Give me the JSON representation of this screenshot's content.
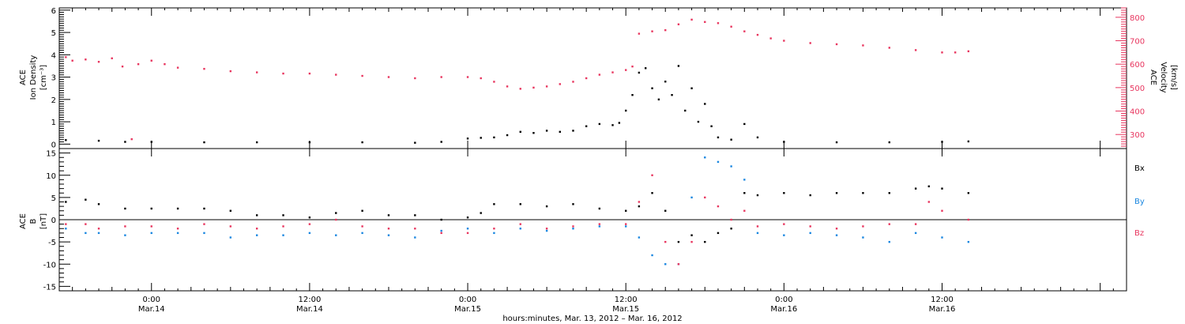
{
  "colors": {
    "black": "#000000",
    "red": "#e8365f",
    "blue": "#1b87e0"
  },
  "x_axis": {
    "label": "hours:minutes, Mar. 13, 2012 – Mar. 16, 2012",
    "ticks": [
      {
        "hour": 24,
        "time": "0:00",
        "date": "Mar.14"
      },
      {
        "hour": 36,
        "time": "12:00",
        "date": "Mar.14"
      },
      {
        "hour": 48,
        "time": "0:00",
        "date": "Mar.15"
      },
      {
        "hour": 60,
        "time": "12:00",
        "date": "Mar.15"
      },
      {
        "hour": 72,
        "time": "0:00",
        "date": "Mar.16"
      },
      {
        "hour": 84,
        "time": "12:00",
        "date": "Mar.16"
      }
    ]
  },
  "chart_data": [
    {
      "type": "scatter",
      "panel": "top",
      "x_range_hours": [
        17,
        98
      ],
      "ylabel_left": [
        "ACE",
        "Ion Density",
        "[cm⁻³]"
      ],
      "ylim_left": [
        -0.2,
        6.1
      ],
      "yticks_left": [
        0,
        1,
        2,
        3,
        4,
        5,
        6
      ],
      "ylabel_right": [
        "ACE",
        "Velocity",
        "[km/s]"
      ],
      "ylim_right": [
        240,
        840
      ],
      "yticks_right": [
        300,
        400,
        500,
        600,
        700,
        800
      ],
      "series": [
        {
          "color": "black",
          "axis": "left",
          "description": "Ion density",
          "points": [
            [
              17.5,
              0.18
            ],
            [
              20,
              0.15
            ],
            [
              22,
              0.1
            ],
            [
              24,
              0.1
            ],
            [
              28,
              0.08
            ],
            [
              32,
              0.08
            ],
            [
              36,
              0.08
            ],
            [
              40,
              0.08
            ],
            [
              44,
              0.06
            ],
            [
              46,
              0.1
            ],
            [
              48,
              0.25
            ],
            [
              49,
              0.28
            ],
            [
              50,
              0.3
            ],
            [
              51,
              0.4
            ],
            [
              52,
              0.55
            ],
            [
              53,
              0.5
            ],
            [
              54,
              0.6
            ],
            [
              55,
              0.55
            ],
            [
              56,
              0.6
            ],
            [
              57,
              0.8
            ],
            [
              58,
              0.9
            ],
            [
              59,
              0.85
            ],
            [
              59.5,
              0.95
            ],
            [
              60,
              1.5
            ],
            [
              60.5,
              2.2
            ],
            [
              61,
              3.2
            ],
            [
              61.5,
              3.4
            ],
            [
              62,
              2.5
            ],
            [
              62.5,
              2.0
            ],
            [
              63,
              2.8
            ],
            [
              63.5,
              2.2
            ],
            [
              64,
              3.5
            ],
            [
              64.5,
              1.5
            ],
            [
              65,
              2.5
            ],
            [
              65.5,
              1.0
            ],
            [
              66,
              1.8
            ],
            [
              66.5,
              0.8
            ],
            [
              67,
              0.3
            ],
            [
              68,
              0.2
            ],
            [
              69,
              0.9
            ],
            [
              70,
              0.3
            ],
            [
              72,
              0.1
            ],
            [
              76,
              0.08
            ],
            [
              80,
              0.08
            ],
            [
              84,
              0.1
            ],
            [
              86,
              0.12
            ]
          ]
        },
        {
          "color": "red",
          "axis": "right",
          "description": "Solar wind velocity",
          "points": [
            [
              17.5,
              630
            ],
            [
              18,
              615
            ],
            [
              19,
              620
            ],
            [
              20,
              610
            ],
            [
              21,
              625
            ],
            [
              21.8,
              590
            ],
            [
              22.5,
              280
            ],
            [
              23,
              600
            ],
            [
              24,
              615
            ],
            [
              25,
              600
            ],
            [
              26,
              585
            ],
            [
              28,
              580
            ],
            [
              30,
              570
            ],
            [
              32,
              565
            ],
            [
              34,
              560
            ],
            [
              36,
              560
            ],
            [
              38,
              555
            ],
            [
              40,
              550
            ],
            [
              42,
              545
            ],
            [
              44,
              540
            ],
            [
              46,
              545
            ],
            [
              48,
              545
            ],
            [
              49,
              540
            ],
            [
              50,
              525
            ],
            [
              51,
              505
            ],
            [
              52,
              495
            ],
            [
              53,
              500
            ],
            [
              54,
              505
            ],
            [
              55,
              515
            ],
            [
              56,
              525
            ],
            [
              57,
              540
            ],
            [
              58,
              555
            ],
            [
              59,
              565
            ],
            [
              60,
              575
            ],
            [
              60.5,
              590
            ],
            [
              61,
              730
            ],
            [
              62,
              740
            ],
            [
              63,
              745
            ],
            [
              64,
              770
            ],
            [
              65,
              790
            ],
            [
              66,
              780
            ],
            [
              67,
              775
            ],
            [
              68,
              760
            ],
            [
              69,
              740
            ],
            [
              70,
              725
            ],
            [
              71,
              710
            ],
            [
              72,
              700
            ],
            [
              74,
              690
            ],
            [
              76,
              685
            ],
            [
              78,
              680
            ],
            [
              80,
              670
            ],
            [
              82,
              660
            ],
            [
              84,
              650
            ],
            [
              85,
              650
            ],
            [
              86,
              655
            ]
          ]
        }
      ]
    },
    {
      "type": "scatter",
      "panel": "bottom",
      "x_range_hours": [
        17,
        98
      ],
      "ylabel": [
        "ACE",
        "B",
        "[nT]"
      ],
      "ylim": [
        -16,
        16
      ],
      "yticks": [
        -15,
        -10,
        -5,
        0,
        5,
        10,
        15
      ],
      "series": [
        {
          "name": "Bx",
          "color": "black",
          "points": [
            [
              17.5,
              4
            ],
            [
              19,
              4.5
            ],
            [
              20,
              3.5
            ],
            [
              22,
              2.5
            ],
            [
              24,
              2.5
            ],
            [
              26,
              2.5
            ],
            [
              28,
              2.5
            ],
            [
              30,
              2
            ],
            [
              32,
              1
            ],
            [
              34,
              1
            ],
            [
              36,
              0.5
            ],
            [
              38,
              1.5
            ],
            [
              40,
              2
            ],
            [
              42,
              1
            ],
            [
              44,
              1
            ],
            [
              46,
              0
            ],
            [
              48,
              0.5
            ],
            [
              49,
              1.5
            ],
            [
              50,
              3.5
            ],
            [
              52,
              3.5
            ],
            [
              54,
              3
            ],
            [
              56,
              3.5
            ],
            [
              58,
              2.5
            ],
            [
              60,
              2
            ],
            [
              61,
              3
            ],
            [
              62,
              6
            ],
            [
              63,
              2
            ],
            [
              64,
              -5
            ],
            [
              65,
              -3.5
            ],
            [
              66,
              -5
            ],
            [
              67,
              -3
            ],
            [
              68,
              -2
            ],
            [
              69,
              6
            ],
            [
              70,
              5.5
            ],
            [
              72,
              6
            ],
            [
              74,
              5.5
            ],
            [
              76,
              6
            ],
            [
              78,
              6
            ],
            [
              80,
              6
            ],
            [
              82,
              7
            ],
            [
              83,
              7.5
            ],
            [
              84,
              7
            ],
            [
              86,
              6
            ]
          ]
        },
        {
          "name": "By",
          "color": "blue",
          "points": [
            [
              17.5,
              -2
            ],
            [
              19,
              -3
            ],
            [
              20,
              -3
            ],
            [
              22,
              -3.5
            ],
            [
              24,
              -3
            ],
            [
              26,
              -3
            ],
            [
              28,
              -3
            ],
            [
              30,
              -4
            ],
            [
              32,
              -3.5
            ],
            [
              34,
              -3.5
            ],
            [
              36,
              -3
            ],
            [
              38,
              -3.5
            ],
            [
              40,
              -3
            ],
            [
              42,
              -3.5
            ],
            [
              44,
              -4
            ],
            [
              46,
              -2.5
            ],
            [
              48,
              -2
            ],
            [
              50,
              -3
            ],
            [
              52,
              -2
            ],
            [
              54,
              -2.5
            ],
            [
              56,
              -2
            ],
            [
              58,
              -1.5
            ],
            [
              60,
              -1.5
            ],
            [
              61,
              -4
            ],
            [
              62,
              -8
            ],
            [
              63,
              -10
            ],
            [
              64,
              -10
            ],
            [
              65,
              5
            ],
            [
              66,
              14
            ],
            [
              67,
              13
            ],
            [
              68,
              12
            ],
            [
              69,
              9
            ],
            [
              70,
              -3
            ],
            [
              72,
              -3.5
            ],
            [
              74,
              -3
            ],
            [
              76,
              -3.5
            ],
            [
              78,
              -4
            ],
            [
              80,
              -5
            ],
            [
              82,
              -3
            ],
            [
              84,
              -4
            ],
            [
              86,
              -5
            ]
          ]
        },
        {
          "name": "Bz",
          "color": "red",
          "points": [
            [
              17.5,
              -1
            ],
            [
              19,
              -1
            ],
            [
              20,
              -2
            ],
            [
              22,
              -1.5
            ],
            [
              24,
              -1.5
            ],
            [
              26,
              -2
            ],
            [
              28,
              -1
            ],
            [
              30,
              -1.5
            ],
            [
              32,
              -2
            ],
            [
              34,
              -1.5
            ],
            [
              36,
              -1
            ],
            [
              38,
              0
            ],
            [
              40,
              -1.5
            ],
            [
              42,
              -2
            ],
            [
              44,
              -2
            ],
            [
              46,
              -3
            ],
            [
              48,
              -3
            ],
            [
              50,
              -2
            ],
            [
              52,
              -1
            ],
            [
              54,
              -2
            ],
            [
              56,
              -1.5
            ],
            [
              58,
              -1
            ],
            [
              60,
              -1
            ],
            [
              61,
              4
            ],
            [
              62,
              10
            ],
            [
              63,
              -5
            ],
            [
              64,
              -10
            ],
            [
              65,
              -5
            ],
            [
              66,
              5
            ],
            [
              67,
              3
            ],
            [
              68,
              0
            ],
            [
              69,
              2
            ],
            [
              70,
              -1.5
            ],
            [
              72,
              -1
            ],
            [
              74,
              -1.5
            ],
            [
              76,
              -2
            ],
            [
              78,
              -1.5
            ],
            [
              80,
              -1
            ],
            [
              82,
              -1
            ],
            [
              83,
              4
            ],
            [
              84,
              2
            ],
            [
              86,
              0
            ]
          ]
        }
      ]
    }
  ]
}
